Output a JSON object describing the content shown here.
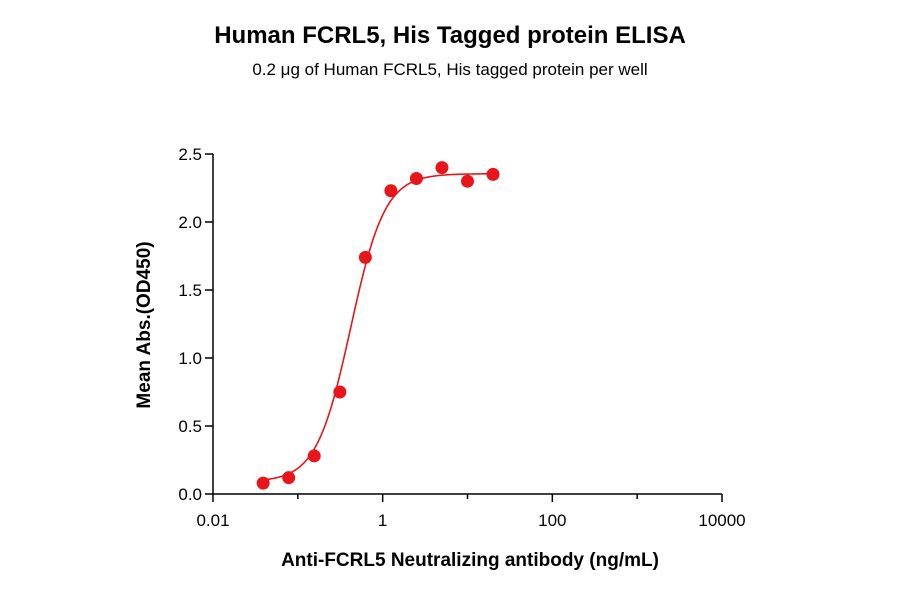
{
  "chart_data": {
    "type": "scatter",
    "title": "Human FCRL5, His Tagged protein ELISA",
    "subtitle": "0.2 μg of Human FCRL5, His tagged protein per well",
    "xlabel": "Anti-FCRL5 Neutralizing antibody (ng/mL)",
    "ylabel": "Mean Abs.(OD450)",
    "xscale": "log",
    "xlim": [
      0.01,
      10000
    ],
    "ylim": [
      0,
      2.5
    ],
    "xticks": [
      "0.01",
      "1",
      "100",
      "10000"
    ],
    "yticks": [
      "0.0",
      "0.5",
      "1.0",
      "1.5",
      "2.0",
      "2.5"
    ],
    "grid": false,
    "colors": {
      "series": "#e8161b",
      "axis": "#000000"
    },
    "series": [
      {
        "x": [
          0.039,
          0.078,
          0.156,
          0.3125,
          0.625,
          1.25,
          2.5,
          5,
          10,
          20
        ],
        "y": [
          0.08,
          0.12,
          0.28,
          0.75,
          1.74,
          2.23,
          2.32,
          2.4,
          2.3,
          2.35
        ],
        "fit": "4PL"
      }
    ]
  }
}
